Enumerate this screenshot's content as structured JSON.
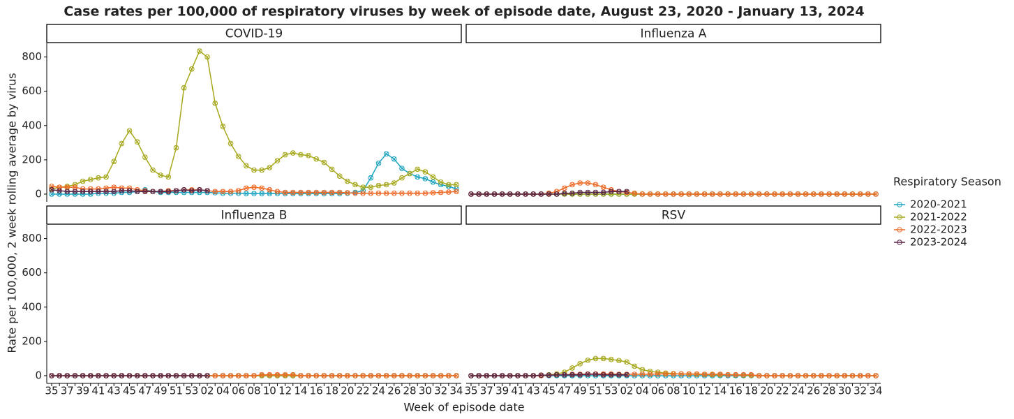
{
  "chart_data": {
    "type": "line",
    "title": "Case rates per 100,000 of respiratory viruses by week of episode date, August 23, 2020 - January 13, 2024",
    "xlabel": "Week of episode date",
    "ylabel": "Rate per 100,000, 2 week rolling average by virus",
    "legend_title": "Respiratory Season",
    "legend_position": "right",
    "seasons": [
      {
        "name": "2020-2021",
        "color": "#1ba3bf"
      },
      {
        "name": "2021-2022",
        "color": "#a6a81c"
      },
      {
        "name": "2022-2023",
        "color": "#ee6a28"
      },
      {
        "name": "2023-2024",
        "color": "#5a2446"
      }
    ],
    "categories": [
      "35",
      null,
      "37",
      null,
      "39",
      null,
      "41",
      null,
      "43",
      null,
      "45",
      null,
      "47",
      null,
      "49",
      null,
      "51",
      null,
      "53",
      null,
      "02",
      null,
      "04",
      null,
      "06",
      null,
      "08",
      null,
      "10",
      null,
      "12",
      null,
      "14",
      null,
      "16",
      null,
      "18",
      null,
      "20",
      null,
      "22",
      null,
      "24",
      null,
      "26",
      null,
      "28",
      null,
      "30",
      null,
      "32",
      null,
      "34"
    ],
    "ylim": [
      -45,
      880
    ],
    "yticks": [
      0,
      200,
      400,
      600,
      800
    ],
    "panels": [
      {
        "title": "COVID-19",
        "series": [
          {
            "values": [
              0,
              0,
              0,
              0,
              0,
              0,
              5,
              5,
              5,
              10,
              10,
              15,
              25,
              15,
              10,
              10,
              10,
              10,
              10,
              10,
              10,
              8,
              5,
              5,
              5,
              3,
              3,
              3,
              3,
              3,
              3,
              3,
              3,
              3,
              3,
              3,
              3,
              3,
              5,
              10,
              20,
              95,
              180,
              235,
              205,
              150,
              120,
              100,
              90,
              70,
              55,
              45,
              30
            ]
          },
          {
            "values": [
              30,
              40,
              45,
              55,
              75,
              85,
              95,
              100,
              190,
              295,
              370,
              305,
              215,
              140,
              110,
              100,
              270,
              620,
              730,
              835,
              800,
              530,
              395,
              295,
              220,
              165,
              140,
              140,
              155,
              195,
              230,
              240,
              230,
              225,
              205,
              185,
              145,
              105,
              75,
              55,
              40,
              40,
              50,
              55,
              65,
              95,
              120,
              145,
              130,
              100,
              70,
              55,
              55
            ]
          },
          {
            "values": [
              45,
              40,
              40,
              40,
              30,
              30,
              30,
              35,
              40,
              35,
              35,
              25,
              20,
              15,
              15,
              20,
              20,
              25,
              25,
              25,
              20,
              15,
              15,
              15,
              20,
              35,
              40,
              35,
              25,
              15,
              10,
              10,
              10,
              10,
              10,
              10,
              10,
              10,
              8,
              5,
              5,
              5,
              5,
              5,
              5,
              5,
              5,
              5,
              5,
              8,
              10,
              12,
              15
            ]
          },
          {
            "values": [
              25,
              20,
              15,
              15,
              15,
              15,
              15,
              15,
              15,
              20,
              20,
              15,
              15,
              15,
              15,
              15,
              20,
              25,
              20,
              25,
              20,
              null,
              null,
              null,
              null,
              null,
              null,
              null,
              null,
              null,
              null,
              null,
              null,
              null,
              null,
              null,
              null,
              null,
              null,
              null,
              null,
              null,
              null,
              null,
              null,
              null,
              null,
              null,
              null,
              null,
              null,
              null,
              null
            ]
          }
        ]
      },
      {
        "title": "Influenza A",
        "series": [
          {
            "values": [
              0,
              0,
              0,
              0,
              0,
              0,
              0,
              0,
              0,
              0,
              0,
              0,
              0,
              0,
              0,
              0,
              0,
              0,
              0,
              0,
              0,
              0,
              0,
              0,
              0,
              0,
              0,
              0,
              0,
              0,
              0,
              0,
              0,
              0,
              0,
              0,
              0,
              0,
              0,
              0,
              0,
              0,
              0,
              0,
              0,
              0,
              0,
              0,
              0,
              0,
              0,
              0,
              0
            ]
          },
          {
            "values": [
              0,
              0,
              0,
              0,
              0,
              0,
              0,
              0,
              0,
              0,
              0,
              0,
              0,
              0,
              0,
              0,
              0,
              0,
              0,
              0,
              0,
              0,
              0,
              0,
              0,
              0,
              0,
              0,
              0,
              0,
              0,
              0,
              0,
              0,
              0,
              0,
              0,
              0,
              0,
              0,
              0,
              0,
              0,
              0,
              0,
              0,
              0,
              0,
              0,
              0,
              0,
              0,
              0
            ]
          },
          {
            "values": [
              0,
              0,
              0,
              0,
              0,
              0,
              0,
              0,
              0,
              0,
              5,
              15,
              35,
              55,
              65,
              65,
              55,
              40,
              25,
              15,
              10,
              5,
              0,
              0,
              0,
              0,
              0,
              0,
              0,
              0,
              0,
              0,
              0,
              0,
              0,
              0,
              0,
              0,
              0,
              0,
              0,
              0,
              0,
              0,
              0,
              0,
              0,
              0,
              0,
              0,
              0,
              0,
              0
            ]
          },
          {
            "values": [
              0,
              0,
              0,
              0,
              0,
              0,
              0,
              0,
              0,
              0,
              0,
              0,
              5,
              5,
              10,
              10,
              10,
              10,
              15,
              15,
              15,
              null,
              null,
              null,
              null,
              null,
              null,
              null,
              null,
              null,
              null,
              null,
              null,
              null,
              null,
              null,
              null,
              null,
              null,
              null,
              null,
              null,
              null,
              null,
              null,
              null,
              null,
              null,
              null,
              null,
              null,
              null,
              null
            ]
          }
        ]
      },
      {
        "title": "Influenza B",
        "series": [
          {
            "values": [
              0,
              0,
              0,
              0,
              0,
              0,
              0,
              0,
              0,
              0,
              0,
              0,
              0,
              0,
              0,
              0,
              0,
              0,
              0,
              0,
              0,
              0,
              0,
              0,
              0,
              0,
              0,
              0,
              0,
              0,
              0,
              0,
              0,
              0,
              0,
              0,
              0,
              0,
              0,
              0,
              0,
              0,
              0,
              0,
              0,
              0,
              0,
              0,
              0,
              0,
              0,
              0,
              0
            ]
          },
          {
            "values": [
              0,
              0,
              0,
              0,
              0,
              0,
              0,
              0,
              0,
              0,
              0,
              0,
              0,
              0,
              0,
              0,
              0,
              0,
              0,
              0,
              0,
              0,
              0,
              0,
              0,
              0,
              0,
              0,
              0,
              0,
              0,
              0,
              0,
              0,
              0,
              0,
              0,
              0,
              0,
              0,
              0,
              0,
              0,
              0,
              0,
              0,
              0,
              0,
              0,
              0,
              0,
              0,
              0
            ]
          },
          {
            "values": [
              0,
              0,
              0,
              0,
              0,
              0,
              0,
              0,
              0,
              0,
              0,
              0,
              0,
              0,
              0,
              0,
              0,
              0,
              0,
              0,
              0,
              0,
              0,
              0,
              0,
              0,
              0,
              5,
              5,
              5,
              5,
              5,
              0,
              0,
              0,
              0,
              0,
              0,
              0,
              0,
              0,
              0,
              0,
              0,
              0,
              0,
              0,
              0,
              0,
              0,
              0,
              0,
              0
            ]
          },
          {
            "values": [
              0,
              0,
              0,
              0,
              0,
              0,
              0,
              0,
              0,
              0,
              0,
              0,
              0,
              0,
              0,
              0,
              0,
              0,
              0,
              0,
              0,
              null,
              null,
              null,
              null,
              null,
              null,
              null,
              null,
              null,
              null,
              null,
              null,
              null,
              null,
              null,
              null,
              null,
              null,
              null,
              null,
              null,
              null,
              null,
              null,
              null,
              null,
              null,
              null,
              null,
              null,
              null,
              null
            ]
          }
        ]
      },
      {
        "title": "RSV",
        "series": [
          {
            "values": [
              0,
              0,
              0,
              0,
              0,
              0,
              0,
              0,
              0,
              0,
              0,
              0,
              0,
              0,
              0,
              0,
              0,
              0,
              0,
              0,
              0,
              0,
              0,
              0,
              0,
              0,
              0,
              0,
              0,
              0,
              0,
              0,
              0,
              0,
              0,
              0,
              0,
              0,
              0,
              0,
              0,
              0,
              0,
              0,
              0,
              0,
              0,
              0,
              0,
              0,
              0,
              0,
              0
            ]
          },
          {
            "values": [
              0,
              0,
              0,
              0,
              0,
              0,
              0,
              0,
              0,
              2,
              5,
              10,
              20,
              45,
              70,
              90,
              100,
              100,
              95,
              88,
              80,
              55,
              35,
              25,
              20,
              15,
              12,
              10,
              8,
              8,
              6,
              5,
              5,
              5,
              4,
              3,
              2,
              0,
              0,
              0,
              0,
              0,
              0,
              0,
              0,
              0,
              0,
              0,
              0,
              0,
              0,
              0,
              0
            ]
          },
          {
            "values": [
              0,
              0,
              0,
              0,
              0,
              0,
              0,
              0,
              0,
              0,
              3,
              5,
              5,
              8,
              8,
              10,
              10,
              10,
              10,
              8,
              8,
              8,
              8,
              8,
              10,
              10,
              10,
              10,
              10,
              10,
              8,
              8,
              8,
              5,
              5,
              5,
              5,
              0,
              0,
              0,
              0,
              0,
              0,
              0,
              0,
              0,
              0,
              0,
              0,
              0,
              0,
              0,
              0
            ]
          },
          {
            "values": [
              0,
              0,
              0,
              0,
              0,
              0,
              0,
              0,
              0,
              3,
              3,
              5,
              5,
              5,
              5,
              8,
              8,
              5,
              5,
              5,
              5,
              null,
              null,
              null,
              null,
              null,
              null,
              null,
              null,
              null,
              null,
              null,
              null,
              null,
              null,
              null,
              null,
              null,
              null,
              null,
              null,
              null,
              null,
              null,
              null,
              null,
              null,
              null,
              null,
              null,
              null,
              null,
              null
            ]
          }
        ]
      }
    ]
  }
}
